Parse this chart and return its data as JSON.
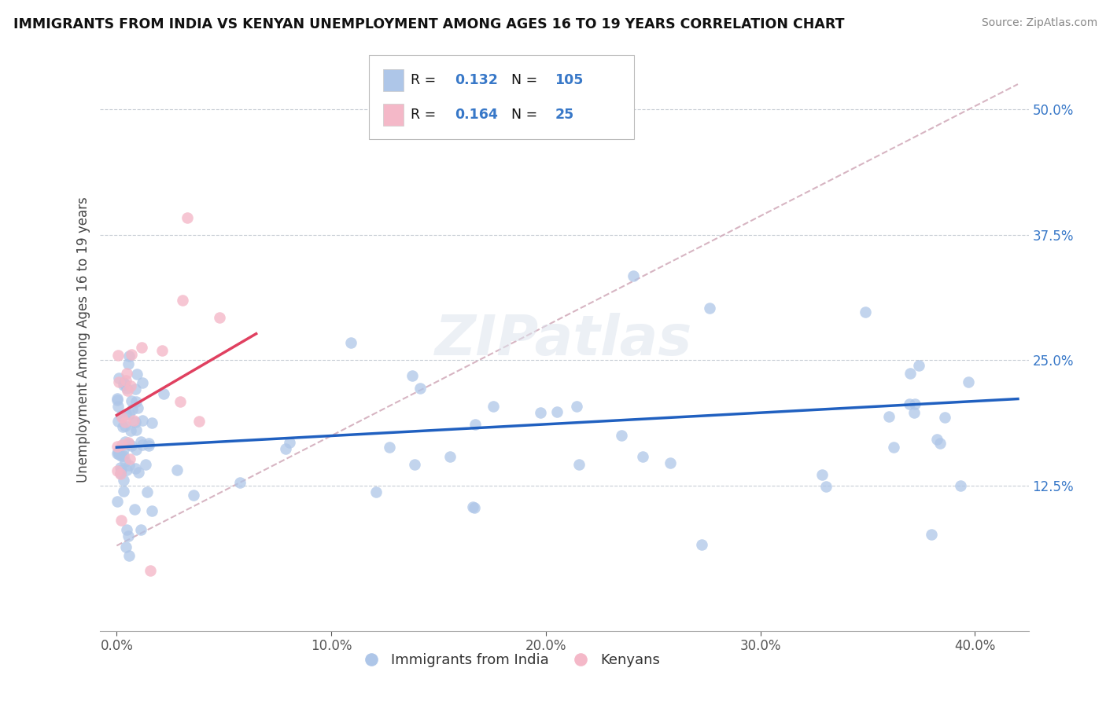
{
  "title": "IMMIGRANTS FROM INDIA VS KENYAN UNEMPLOYMENT AMONG AGES 16 TO 19 YEARS CORRELATION CHART",
  "source": "Source: ZipAtlas.com",
  "ylabel": "Unemployment Among Ages 16 to 19 years",
  "xlim": [
    0.0,
    0.42
  ],
  "ylim": [
    0.0,
    0.56
  ],
  "blue_color": "#aec6e8",
  "pink_color": "#f4b8c8",
  "blue_line_color": "#2060c0",
  "pink_line_color": "#e04060",
  "diag_line_color": "#d0a8b8",
  "legend_blue_label": "Immigrants from India",
  "legend_pink_label": "Kenyans",
  "R_blue": "0.132",
  "N_blue": "105",
  "R_pink": "0.164",
  "N_pink": "25",
  "watermark": "ZIPatlas",
  "xticks": [
    0.0,
    0.1,
    0.2,
    0.3,
    0.4
  ],
  "xticklabels": [
    "0.0%",
    "10.0%",
    "20.0%",
    "30.0%",
    "40.0%"
  ],
  "yticks": [
    0.125,
    0.25,
    0.375,
    0.5
  ],
  "yticklabels": [
    "12.5%",
    "25.0%",
    "37.5%",
    "50.0%"
  ]
}
